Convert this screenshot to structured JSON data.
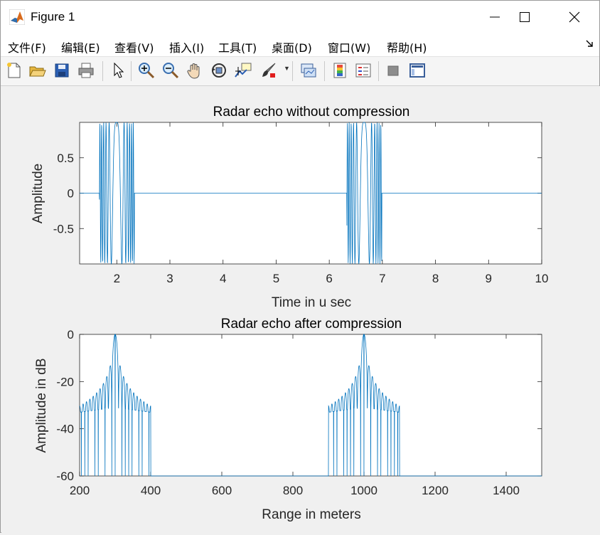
{
  "window": {
    "title": "Figure 1"
  },
  "menu": [
    "文件(F)",
    "编辑(E)",
    "查看(V)",
    "插入(I)",
    "工具(T)",
    "桌面(D)",
    "窗口(W)",
    "帮助(H)"
  ],
  "toolbar_icons": [
    "new-figure-icon",
    "open-file-icon",
    "save-icon",
    "print-icon",
    "select-arrow-icon",
    "zoom-in-icon",
    "zoom-out-icon",
    "pan-hand-icon",
    "rotate-3d-icon",
    "data-cursor-icon",
    "brush-icon",
    "link-plot-icon",
    "colorbar-icon",
    "legend-icon",
    "hide-plot-tools-icon",
    "show-plot-tools-icon"
  ],
  "colors": {
    "line": "#0072BD",
    "axes_bg": "#ffffff",
    "figure_bg": "#f0f0f0"
  },
  "chart_data": [
    {
      "type": "line",
      "title": "Radar echo without compression",
      "xlabel": "Time in u sec",
      "ylabel": "Amplitude",
      "xlim": [
        1.3,
        10
      ],
      "ylim": [
        -1,
        1
      ],
      "xticks": [
        2,
        3,
        4,
        5,
        6,
        7,
        8,
        9,
        10
      ],
      "yticks": [
        -0.5,
        0,
        0.5
      ],
      "ytick_labels": [
        "-0.5",
        "0",
        "0.5"
      ],
      "pulses": [
        {
          "start": 1.67,
          "end": 2.33
        },
        {
          "start": 6.33,
          "end": 6.99
        }
      ],
      "grid": false
    },
    {
      "type": "line",
      "title": "Radar echo after compression",
      "xlabel": "Range in meters",
      "ylabel": "Amplitude in dB",
      "xlim": [
        200,
        1500
      ],
      "ylim": [
        -60,
        0
      ],
      "xticks": [
        200,
        400,
        600,
        800,
        1000,
        1200,
        1400
      ],
      "yticks": [
        -60,
        -40,
        -20,
        0
      ],
      "ytick_labels": [
        "-60",
        "-40",
        "-20",
        "0"
      ],
      "peaks": [
        300,
        1000
      ],
      "support_halfwidth": 100,
      "grid": false
    }
  ]
}
